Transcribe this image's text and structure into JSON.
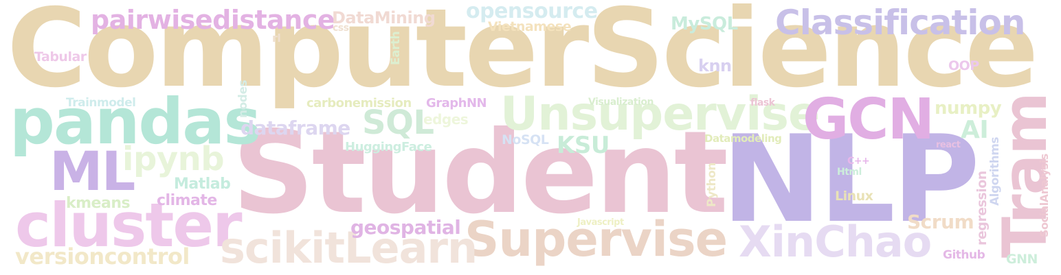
{
  "palette": {
    "sand": "#e8d6b1",
    "pink": "#eac4d3",
    "mint": "#b4e6d7",
    "lavender": "#c1b4e6",
    "lilac": "#e3b2e3",
    "paleGreen": "#e2f2d7",
    "peach": "#ebd4c6",
    "sky": "#d5ecf0",
    "lightLilac": "#e6dbf2"
  },
  "words": [
    "ComputerScience",
    "Student",
    "NLP",
    "pandas",
    "cluster",
    "Unsupervise",
    "Supervise",
    "scikitLearn",
    "Classification",
    "GCN",
    "XinChao",
    "Tram",
    "pairwisedistance",
    "ML",
    "ipynb",
    "versioncontrol",
    "SQL",
    "opensource",
    "DataMining",
    "MySQL",
    "Vietnamese",
    "dataframe",
    "KSU",
    "numpy",
    "AI",
    "Scrum",
    "geospatial",
    "Matlab",
    "kmeans",
    "climate",
    "Trainmodel",
    "carbonemission",
    "GraphNN",
    "HuggingFace",
    "knn",
    "Tabular",
    "OOP",
    "edges",
    "NoSQL",
    "Visualization",
    "flask",
    "Datamodeling",
    "Linux",
    "Github",
    "GNN",
    "css",
    "rl",
    "Earth",
    "nodes",
    "Python",
    "Javascript",
    "C++",
    "Html",
    "react",
    "Algorithms",
    "regression",
    "SocialAnalysis"
  ]
}
